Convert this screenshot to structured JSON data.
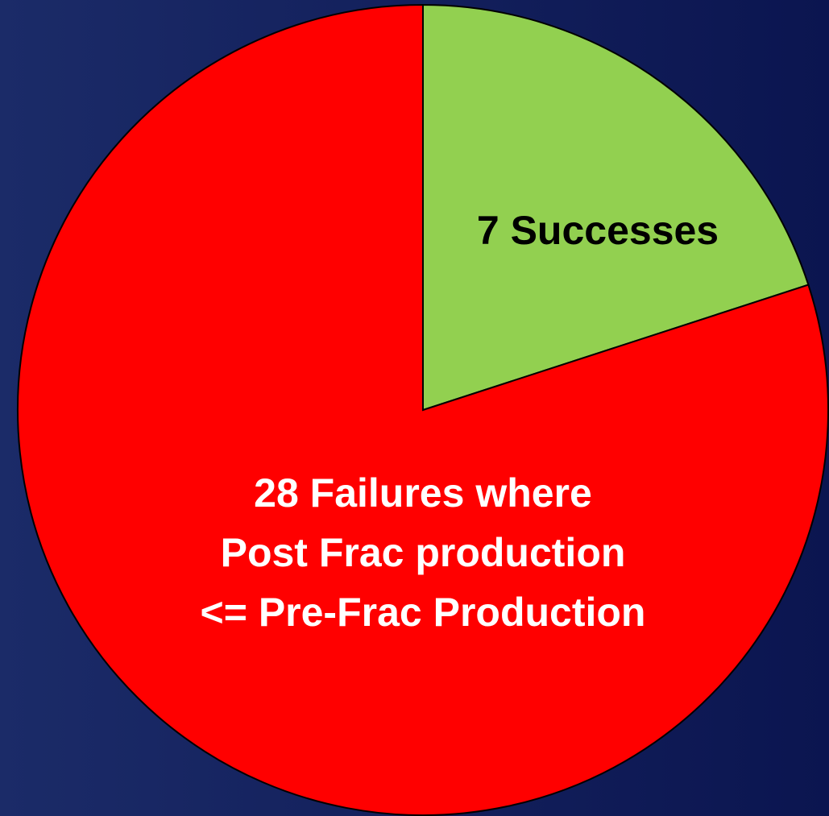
{
  "chart_data": {
    "type": "pie",
    "values": [
      7,
      28
    ],
    "value_labels": [
      "7 Successes",
      [
        "28 Failures where",
        "Post Frac production",
        "<= Pre-Frac Production"
      ]
    ],
    "colors": [
      "#92d050",
      "#ff0000"
    ],
    "label_colors": [
      "#000000",
      "#ffffff"
    ]
  }
}
